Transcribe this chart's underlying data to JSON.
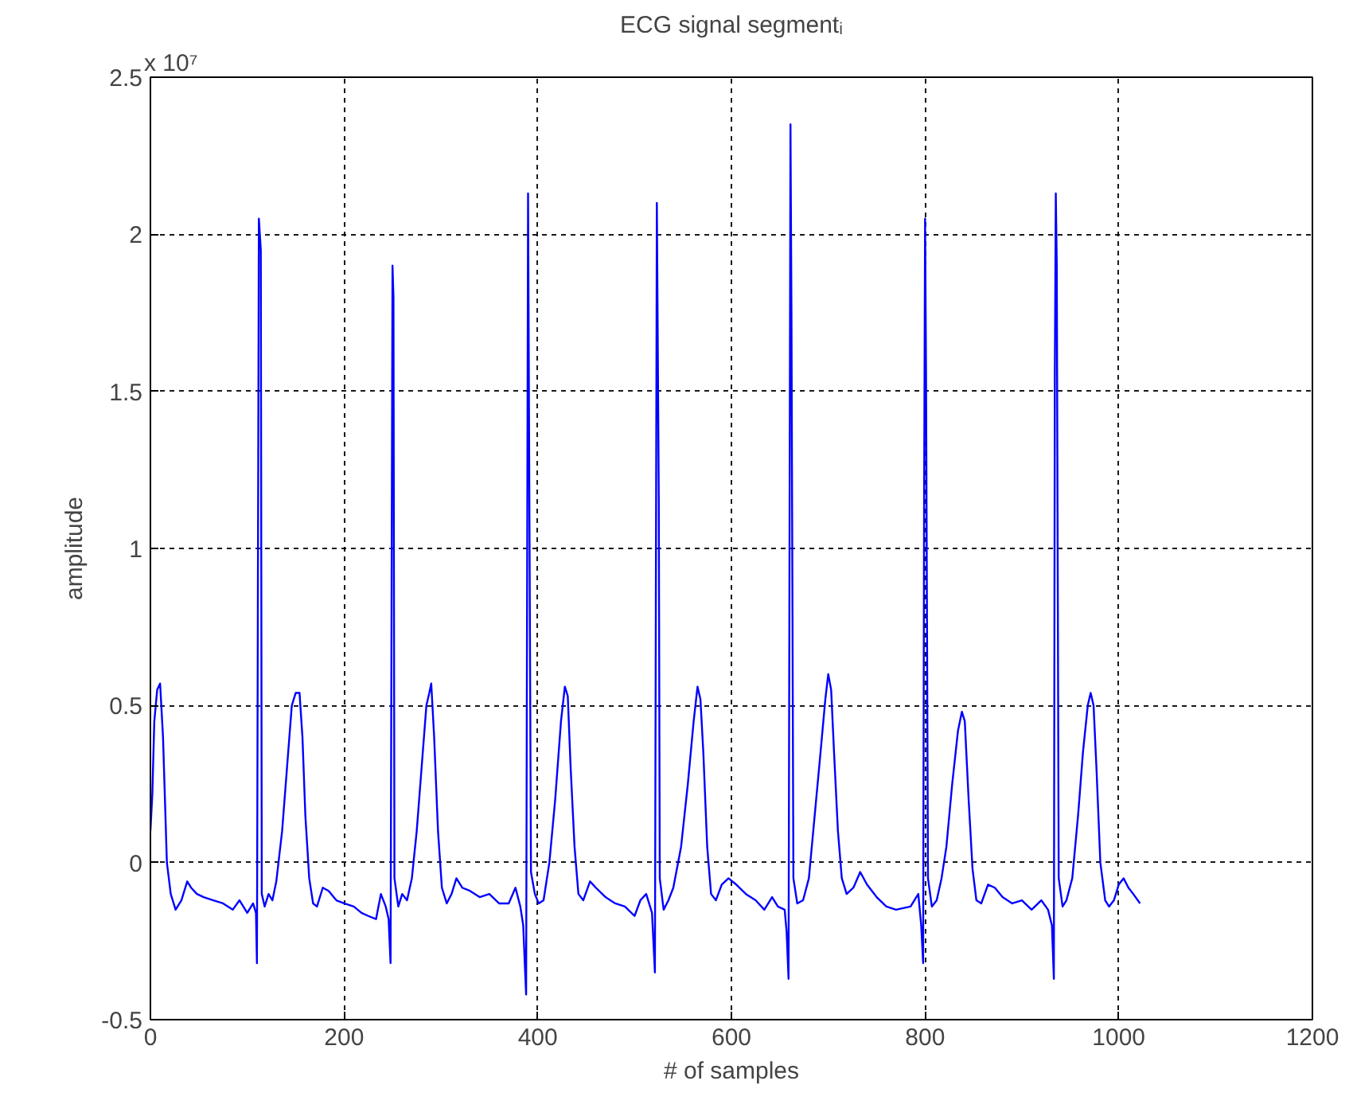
{
  "chart_data": {
    "type": "line",
    "title": "ECG signal segmentᵢ",
    "xlabel": "# of samples",
    "ylabel": "amplitude",
    "annotations": [
      "x 10⁷"
    ],
    "x": [
      0,
      2,
      4,
      7,
      10,
      13,
      17,
      21,
      26,
      32,
      38,
      42,
      48,
      55,
      65,
      75,
      85,
      92,
      100,
      106,
      109,
      110,
      112,
      114,
      115,
      118,
      122,
      126,
      130,
      136,
      141,
      146,
      150,
      154,
      157,
      160,
      164,
      168,
      172,
      178,
      184,
      192,
      200,
      210,
      218,
      225,
      233,
      238,
      243,
      246,
      248,
      250,
      251,
      252,
      256,
      260,
      265,
      270,
      275,
      280,
      285,
      288,
      290,
      293,
      297,
      301,
      306,
      311,
      316,
      322,
      330,
      340,
      350,
      360,
      370,
      377,
      382,
      385,
      387,
      388,
      390,
      391,
      393,
      397,
      401,
      406,
      412,
      418,
      424,
      428,
      431,
      434,
      438,
      442,
      447,
      454,
      460,
      470,
      480,
      490,
      500,
      506,
      512,
      518,
      521,
      523,
      525,
      526,
      530,
      535,
      540,
      548,
      555,
      561,
      565,
      568,
      571,
      575,
      579,
      584,
      590,
      597,
      605,
      615,
      625,
      634,
      642,
      648,
      655,
      657,
      659,
      661,
      662,
      664,
      668,
      674,
      680,
      686,
      692,
      697,
      700,
      703,
      706,
      710,
      714,
      719,
      726,
      733,
      740,
      750,
      760,
      770,
      785,
      793,
      796,
      798,
      799,
      800,
      801,
      803,
      807,
      812,
      817,
      822,
      828,
      834,
      838,
      841,
      845,
      849,
      853,
      858,
      865,
      872,
      880,
      890,
      900,
      910,
      920,
      927,
      931,
      933,
      934,
      935,
      936,
      938,
      942,
      946,
      952,
      958,
      963,
      968,
      971,
      974,
      977,
      981,
      986,
      990,
      995,
      1000,
      1005,
      1010,
      1015,
      1022
    ],
    "series": [
      {
        "color": "#0000ff",
        "values": [
          0.1,
          0.22,
          0.45,
          0.55,
          0.57,
          0.4,
          0.0,
          -0.1,
          -0.15,
          -0.12,
          -0.06,
          -0.08,
          -0.1,
          -0.11,
          -0.12,
          -0.13,
          -0.15,
          -0.12,
          -0.16,
          -0.13,
          -0.16,
          -0.32,
          2.05,
          1.95,
          -0.1,
          -0.14,
          -0.1,
          -0.12,
          -0.06,
          0.1,
          0.3,
          0.5,
          0.54,
          0.54,
          0.4,
          0.15,
          -0.05,
          -0.13,
          -0.14,
          -0.08,
          -0.09,
          -0.12,
          -0.13,
          -0.14,
          -0.16,
          -0.17,
          -0.18,
          -0.1,
          -0.14,
          -0.18,
          -0.32,
          1.9,
          1.8,
          -0.05,
          -0.14,
          -0.1,
          -0.12,
          -0.05,
          0.1,
          0.3,
          0.5,
          0.54,
          0.57,
          0.4,
          0.1,
          -0.08,
          -0.13,
          -0.1,
          -0.05,
          -0.08,
          -0.09,
          -0.11,
          -0.1,
          -0.13,
          -0.13,
          -0.08,
          -0.14,
          -0.2,
          -0.35,
          -0.42,
          2.13,
          1.4,
          -0.03,
          -0.1,
          -0.13,
          -0.12,
          0.0,
          0.2,
          0.45,
          0.56,
          0.53,
          0.3,
          0.05,
          -0.1,
          -0.12,
          -0.06,
          -0.08,
          -0.11,
          -0.13,
          -0.14,
          -0.17,
          -0.12,
          -0.1,
          -0.16,
          -0.35,
          2.1,
          1.15,
          -0.05,
          -0.15,
          -0.12,
          -0.08,
          0.05,
          0.25,
          0.45,
          0.56,
          0.52,
          0.35,
          0.05,
          -0.1,
          -0.12,
          -0.07,
          -0.05,
          -0.07,
          -0.1,
          -0.12,
          -0.15,
          -0.11,
          -0.14,
          -0.15,
          -0.22,
          -0.37,
          2.35,
          1.75,
          -0.05,
          -0.13,
          -0.12,
          -0.05,
          0.15,
          0.35,
          0.52,
          0.6,
          0.55,
          0.35,
          0.1,
          -0.05,
          -0.1,
          -0.08,
          -0.03,
          -0.07,
          -0.11,
          -0.14,
          -0.15,
          -0.14,
          -0.1,
          -0.2,
          -0.32,
          1.15,
          2.05,
          1.55,
          -0.05,
          -0.14,
          -0.12,
          -0.05,
          0.05,
          0.25,
          0.42,
          0.48,
          0.45,
          0.2,
          -0.02,
          -0.12,
          -0.13,
          -0.07,
          -0.08,
          -0.11,
          -0.13,
          -0.12,
          -0.15,
          -0.12,
          -0.15,
          -0.2,
          -0.37,
          1.55,
          2.13,
          1.9,
          -0.05,
          -0.14,
          -0.12,
          -0.05,
          0.15,
          0.35,
          0.5,
          0.54,
          0.5,
          0.3,
          0.0,
          -0.12,
          -0.14,
          -0.12,
          -0.07,
          -0.05,
          -0.08,
          -0.1,
          -0.13
        ]
      }
    ],
    "xlim": [
      0,
      1200
    ],
    "ylim": [
      -0.5,
      2.5
    ],
    "xticks": [
      0,
      200,
      400,
      600,
      800,
      1000,
      1200
    ],
    "yticks": [
      -0.5,
      0,
      0.5,
      1,
      1.5,
      2,
      2.5
    ],
    "grid": true
  }
}
